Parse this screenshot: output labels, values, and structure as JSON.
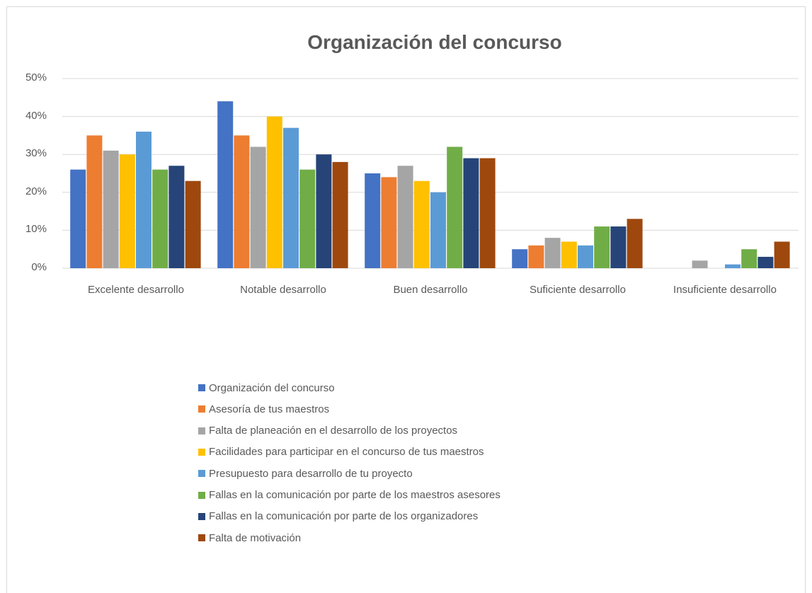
{
  "chart_data": {
    "type": "bar",
    "title": "Organización del concurso",
    "categories": [
      "Excelente desarrollo",
      "Notable desarrollo",
      "Buen desarrollo",
      "Suficiente desarrollo",
      "Insuficiente desarrollo"
    ],
    "series": [
      {
        "name": "Organización del concurso",
        "color": "#4472c4",
        "values": [
          26,
          44,
          25,
          5,
          0
        ]
      },
      {
        "name": "Asesoría de tus maestros",
        "color": "#ed7d31",
        "values": [
          35,
          35,
          24,
          6,
          0
        ]
      },
      {
        "name": "Falta de planeación en el desarrollo de los proyectos",
        "color": "#a5a5a5",
        "values": [
          31,
          32,
          27,
          8,
          2
        ]
      },
      {
        "name": "Facilidades para participar en el concurso de tus maestros",
        "color": "#ffc000",
        "values": [
          30,
          40,
          23,
          7,
          0
        ]
      },
      {
        "name": "Presupuesto para desarrollo de tu proyecto",
        "color": "#5b9bd5",
        "values": [
          36,
          37,
          20,
          6,
          1
        ]
      },
      {
        "name": "Fallas en la comunicación por parte de los maestros asesores",
        "color": "#70ad47",
        "values": [
          26,
          26,
          32,
          11,
          5
        ]
      },
      {
        "name": "Fallas en la comunicación por parte de los organizadores",
        "color": "#264478",
        "values": [
          27,
          30,
          29,
          11,
          3
        ]
      },
      {
        "name": "Falta de motivación",
        "color": "#9e480e",
        "values": [
          23,
          28,
          29,
          13,
          7
        ]
      }
    ],
    "ylim": [
      0,
      50
    ],
    "yticks": [
      {
        "value": 0,
        "label": "0%"
      },
      {
        "value": 10,
        "label": "10%"
      },
      {
        "value": 20,
        "label": "20%"
      },
      {
        "value": 30,
        "label": "30%"
      },
      {
        "value": 40,
        "label": "40%"
      },
      {
        "value": 50,
        "label": "50%"
      }
    ],
    "grid": true,
    "legend": "bottom"
  }
}
